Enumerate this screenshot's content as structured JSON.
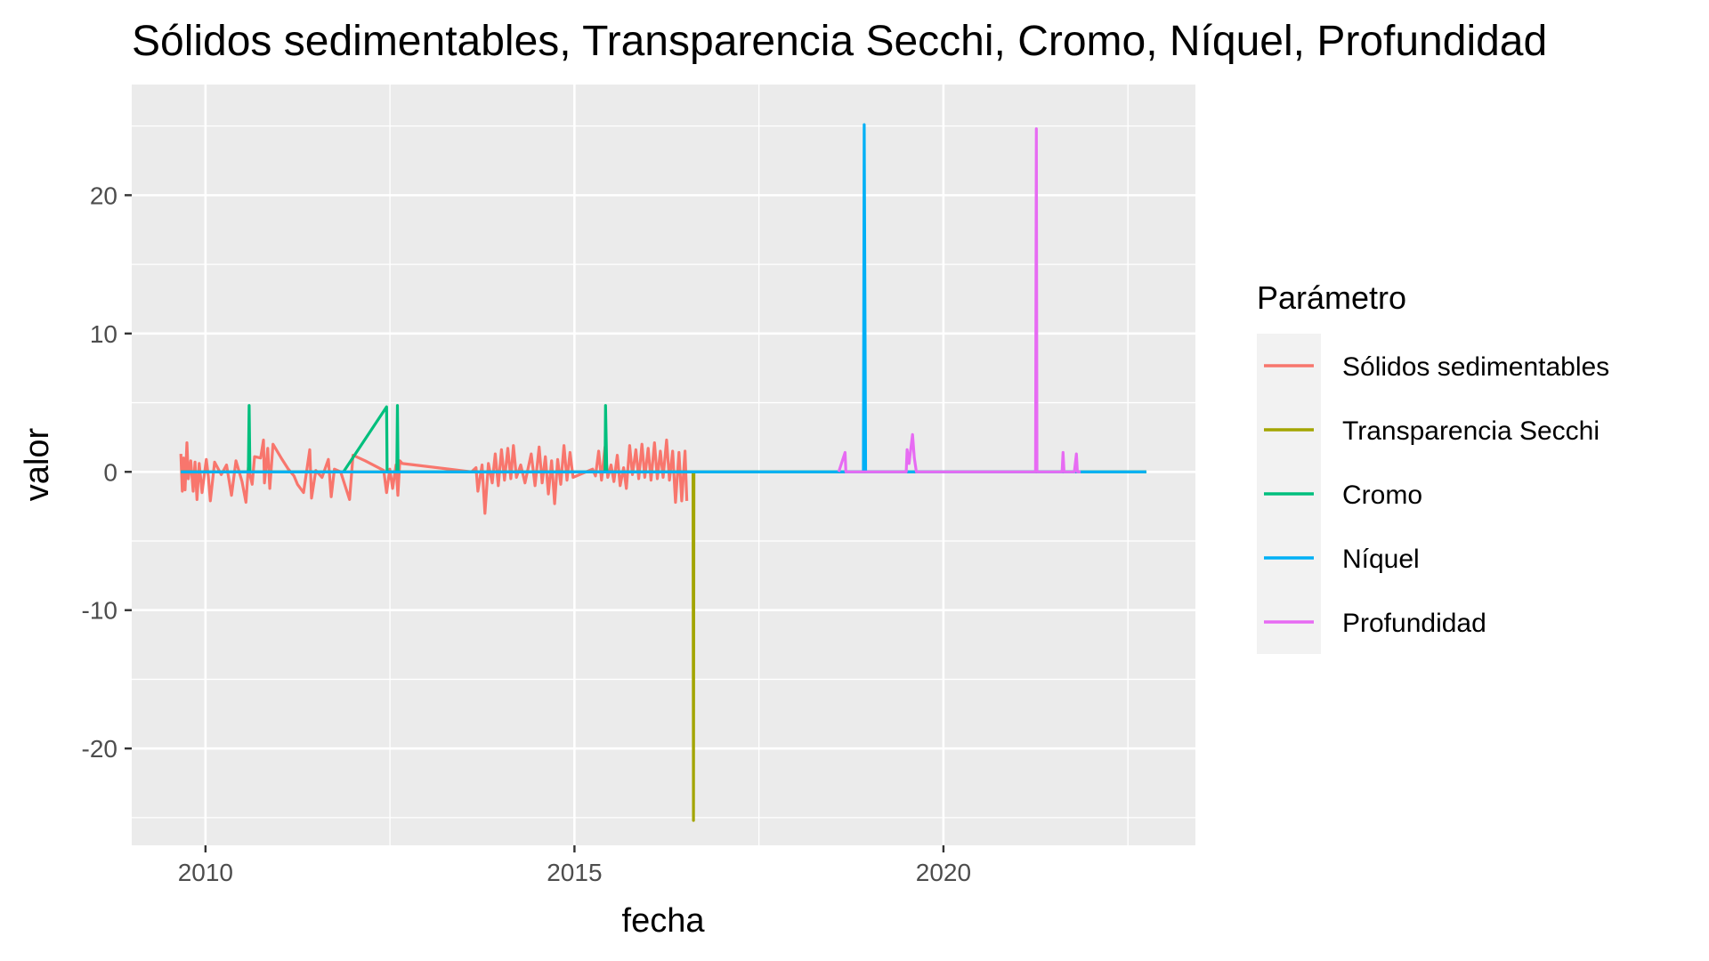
{
  "chart_data": {
    "type": "line",
    "title": "Sólidos sedimentables, Transparencia Secchi, Cromo, Níquel, Profundidad",
    "xlabel": "fecha",
    "ylabel": "valor",
    "xlim": [
      "2009-01-01",
      "2023-06-01"
    ],
    "ylim": [
      -27,
      28
    ],
    "x_ticks": [
      {
        "label": "2010",
        "value": "2010-01-01"
      },
      {
        "label": "2015",
        "value": "2015-01-01"
      },
      {
        "label": "2020",
        "value": "2020-01-01"
      }
    ],
    "y_ticks": [
      -20,
      -10,
      0,
      10,
      20
    ],
    "grid": true,
    "legend": {
      "title": "Parámetro",
      "position": "right"
    },
    "series": [
      {
        "name": "Sólidos sedimentables",
        "color": "#F8766D",
        "points": [
          [
            "2009-09-01",
            1.3
          ],
          [
            "2009-09-08",
            -1.4
          ],
          [
            "2009-09-15",
            1.0
          ],
          [
            "2009-09-22",
            -1.3
          ],
          [
            "2009-10-01",
            2.1
          ],
          [
            "2009-10-08",
            -0.5
          ],
          [
            "2009-10-20",
            0.8
          ],
          [
            "2009-11-01",
            -1.4
          ],
          [
            "2009-11-10",
            0.7
          ],
          [
            "2009-11-20",
            -2.0
          ],
          [
            "2009-12-01",
            0.6
          ],
          [
            "2009-12-15",
            -1.5
          ],
          [
            "2010-01-05",
            0.9
          ],
          [
            "2010-01-15",
            -0.3
          ],
          [
            "2010-01-25",
            -2.1
          ],
          [
            "2010-02-15",
            0.7
          ],
          [
            "2010-03-20",
            -0.2
          ],
          [
            "2010-04-15",
            0.5
          ],
          [
            "2010-05-10",
            -1.7
          ],
          [
            "2010-06-01",
            0.8
          ],
          [
            "2010-07-01",
            -0.7
          ],
          [
            "2010-07-20",
            -2.2
          ],
          [
            "2010-08-01",
            0.3
          ],
          [
            "2010-08-20",
            -0.9
          ],
          [
            "2010-09-01",
            1.1
          ],
          [
            "2010-10-01",
            1.0
          ],
          [
            "2010-10-15",
            2.3
          ],
          [
            "2010-10-20",
            -0.8
          ],
          [
            "2010-11-05",
            1.7
          ],
          [
            "2010-11-15",
            -1.2
          ],
          [
            "2010-12-01",
            2.0
          ],
          [
            "2011-01-15",
            0.9
          ],
          [
            "2011-02-15",
            0.2
          ],
          [
            "2011-03-15",
            -0.3
          ],
          [
            "2011-04-01",
            -0.9
          ],
          [
            "2011-05-01",
            -1.5
          ],
          [
            "2011-06-01",
            1.6
          ],
          [
            "2011-06-10",
            -1.9
          ],
          [
            "2011-07-01",
            0.1
          ],
          [
            "2011-08-01",
            -0.4
          ],
          [
            "2011-09-01",
            0.9
          ],
          [
            "2011-09-15",
            -1.8
          ],
          [
            "2011-10-01",
            0.2
          ],
          [
            "2011-11-01",
            0.0
          ],
          [
            "2011-12-15",
            -2.0
          ],
          [
            "2012-01-01",
            1.2
          ],
          [
            "2012-03-01",
            0.8
          ],
          [
            "2012-06-01",
            0.1
          ],
          [
            "2012-06-15",
            -1.5
          ],
          [
            "2012-07-01",
            0.2
          ],
          [
            "2012-07-15",
            -1.2
          ],
          [
            "2012-08-01",
            0.5
          ],
          [
            "2012-08-10",
            -1.7
          ],
          [
            "2012-08-20",
            0.8
          ],
          [
            "2012-09-01",
            0.6
          ],
          [
            "2013-08-10",
            0.0
          ],
          [
            "2013-09-01",
            0.3
          ],
          [
            "2013-09-10",
            -1.4
          ],
          [
            "2013-10-01",
            0.5
          ],
          [
            "2013-10-15",
            -3.0
          ],
          [
            "2013-11-01",
            0.6
          ],
          [
            "2013-11-20",
            -0.8
          ],
          [
            "2013-12-05",
            1.3
          ],
          [
            "2013-12-20",
            -1.0
          ],
          [
            "2014-01-05",
            1.6
          ],
          [
            "2014-01-20",
            -0.6
          ],
          [
            "2014-02-05",
            1.7
          ],
          [
            "2014-02-20",
            -0.5
          ],
          [
            "2014-03-05",
            1.9
          ],
          [
            "2014-03-20",
            -0.4
          ],
          [
            "2014-04-10",
            0.5
          ],
          [
            "2014-05-01",
            -0.8
          ],
          [
            "2014-06-01",
            1.3
          ],
          [
            "2014-06-20",
            -1.0
          ],
          [
            "2014-07-10",
            1.8
          ],
          [
            "2014-07-25",
            -0.8
          ],
          [
            "2014-08-10",
            1.1
          ],
          [
            "2014-08-25",
            -1.6
          ],
          [
            "2014-09-10",
            0.8
          ],
          [
            "2014-09-25",
            -2.3
          ],
          [
            "2014-10-10",
            0.9
          ],
          [
            "2014-10-25",
            -0.9
          ],
          [
            "2014-11-10",
            1.9
          ],
          [
            "2014-11-25",
            -0.6
          ],
          [
            "2014-12-10",
            1.4
          ],
          [
            "2014-12-25",
            -0.4
          ],
          [
            "2015-04-01",
            0.2
          ],
          [
            "2015-04-15",
            -0.3
          ],
          [
            "2015-05-01",
            1.5
          ],
          [
            "2015-05-15",
            -0.6
          ],
          [
            "2015-06-01",
            1.8
          ],
          [
            "2015-06-15",
            -0.4
          ],
          [
            "2015-07-01",
            0.5
          ],
          [
            "2015-07-15",
            -0.7
          ],
          [
            "2015-08-01",
            1.2
          ],
          [
            "2015-08-15",
            -1.0
          ],
          [
            "2015-09-01",
            0.3
          ],
          [
            "2015-09-15",
            -1.2
          ],
          [
            "2015-10-01",
            1.9
          ],
          [
            "2015-10-15",
            -0.2
          ],
          [
            "2015-11-01",
            1.6
          ],
          [
            "2015-11-15",
            -0.5
          ],
          [
            "2015-12-01",
            2.0
          ],
          [
            "2015-12-15",
            -0.4
          ],
          [
            "2016-01-01",
            1.7
          ],
          [
            "2016-01-15",
            -0.6
          ],
          [
            "2016-02-01",
            2.1
          ],
          [
            "2016-02-15",
            -0.5
          ],
          [
            "2016-03-01",
            1.5
          ],
          [
            "2016-03-15",
            -0.4
          ],
          [
            "2016-04-01",
            2.3
          ],
          [
            "2016-04-15",
            -0.6
          ],
          [
            "2016-05-01",
            1.5
          ],
          [
            "2016-05-15",
            -2.2
          ],
          [
            "2016-06-01",
            1.4
          ],
          [
            "2016-06-15",
            -2.1
          ],
          [
            "2016-07-01",
            1.5
          ],
          [
            "2016-07-10",
            -2.1
          ]
        ]
      },
      {
        "name": "Transparencia Secchi",
        "color": "#A3A500",
        "points": [
          [
            "2009-09-01",
            0
          ],
          [
            "2016-08-10",
            0
          ],
          [
            "2016-08-12",
            -25.2
          ],
          [
            "2016-08-14",
            0
          ],
          [
            "2022-10-01",
            0
          ]
        ]
      },
      {
        "name": "Cromo",
        "color": "#00BF7D",
        "points": [
          [
            "2009-09-01",
            0
          ],
          [
            "2010-08-01",
            0
          ],
          [
            "2010-08-05",
            4.8
          ],
          [
            "2010-08-09",
            0
          ],
          [
            "2011-11-15",
            0
          ],
          [
            "2012-06-15",
            4.7
          ],
          [
            "2012-06-18",
            0
          ],
          [
            "2012-08-05",
            0
          ],
          [
            "2012-08-08",
            4.8
          ],
          [
            "2012-08-11",
            0
          ],
          [
            "2015-06-01",
            0
          ],
          [
            "2015-06-04",
            4.8
          ],
          [
            "2015-06-10",
            0
          ],
          [
            "2022-10-01",
            0
          ]
        ]
      },
      {
        "name": "Níquel",
        "color": "#00B0F6",
        "points": [
          [
            "2009-09-01",
            0
          ],
          [
            "2018-12-01",
            0
          ],
          [
            "2018-12-05",
            25.1
          ],
          [
            "2018-12-12",
            0
          ],
          [
            "2022-10-01",
            0
          ]
        ]
      },
      {
        "name": "Profundidad",
        "color": "#E76BF3",
        "points": [
          [
            "2018-08-01",
            0
          ],
          [
            "2018-09-01",
            1.4
          ],
          [
            "2018-09-05",
            0
          ],
          [
            "2019-07-01",
            0
          ],
          [
            "2019-07-05",
            1.6
          ],
          [
            "2019-07-15",
            0.6
          ],
          [
            "2019-08-01",
            2.7
          ],
          [
            "2019-08-10",
            1.0
          ],
          [
            "2019-08-20",
            0
          ],
          [
            "2021-04-01",
            0
          ],
          [
            "2021-04-05",
            24.8
          ],
          [
            "2021-04-08",
            0
          ],
          [
            "2021-08-10",
            0
          ],
          [
            "2021-08-15",
            1.4
          ],
          [
            "2021-08-20",
            0
          ],
          [
            "2021-10-10",
            0
          ],
          [
            "2021-10-20",
            1.3
          ],
          [
            "2021-10-25",
            0
          ],
          [
            "2021-11-10",
            0
          ]
        ]
      }
    ]
  }
}
